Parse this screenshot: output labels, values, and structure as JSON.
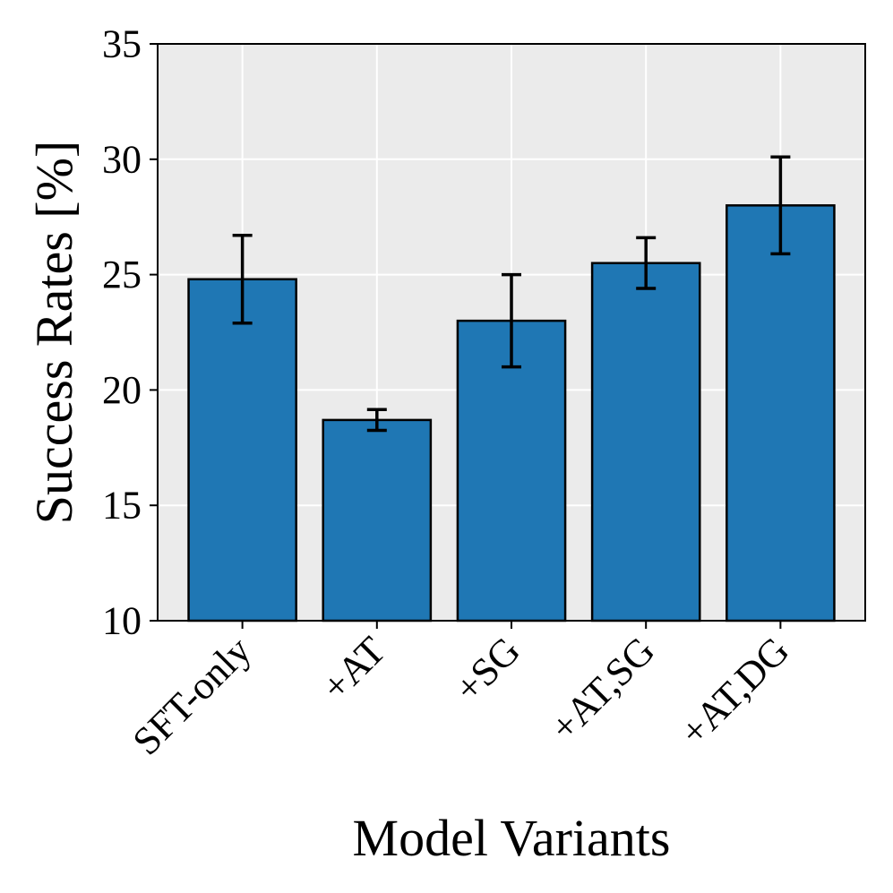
{
  "chart_data": {
    "type": "bar",
    "title": "",
    "xlabel": "Model Variants",
    "ylabel": "Success Rates [%]",
    "categories": [
      "SFT-only",
      "+AT",
      "+SG",
      "+AT,SG",
      "+AT,DG"
    ],
    "values": [
      24.8,
      18.7,
      23.0,
      25.5,
      28.0
    ],
    "error_bars": [
      1.9,
      0.45,
      2.0,
      1.1,
      2.1
    ],
    "ylim": [
      10,
      35
    ],
    "yticks": [
      10,
      15,
      20,
      25,
      30,
      35
    ],
    "ytick_labels": [
      "10",
      "15",
      "20",
      "25",
      "30",
      "35"
    ],
    "grid": true,
    "colors": {
      "bar": "#1f77b4",
      "bar_edge": "#000000",
      "plot_background": "#ebebeb",
      "grid": "#ffffff",
      "error_bar": "#000000"
    }
  }
}
